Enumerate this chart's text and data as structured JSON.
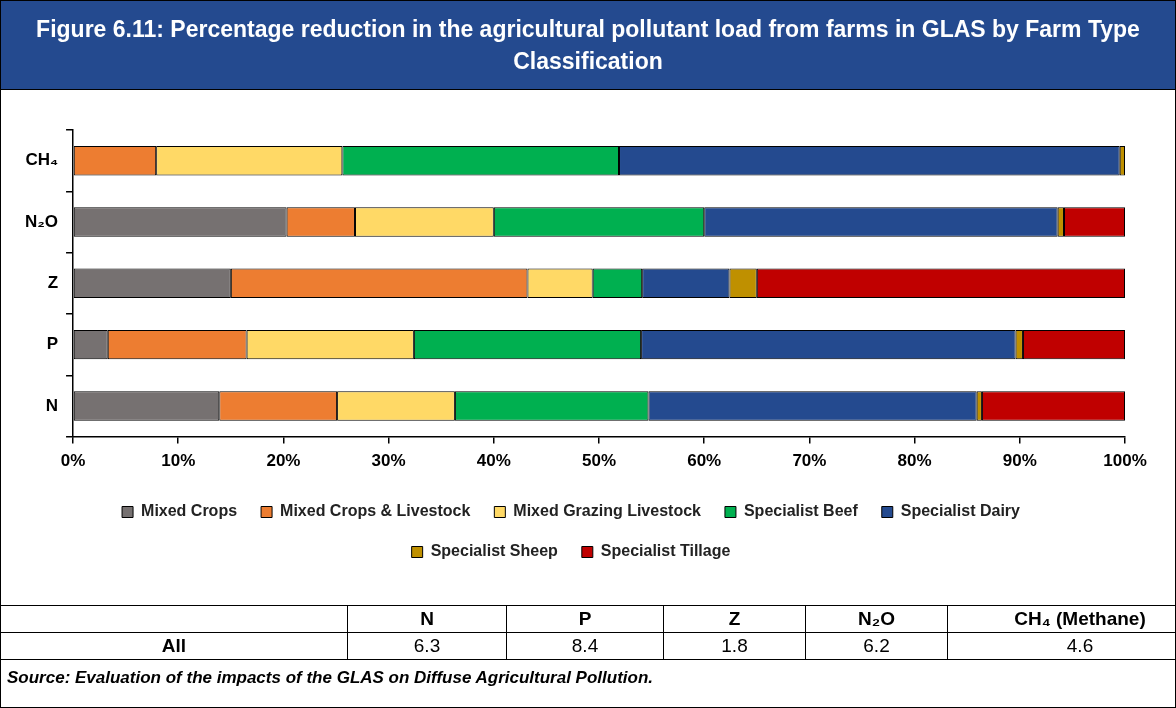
{
  "chart_data": [
    {
      "type": "bar",
      "orientation": "horizontal",
      "stacked": true,
      "title": "Figure 6.11: Percentage reduction in the agricultural pollutant load from farms in GLAS by Farm Type Classification",
      "categories": [
        "CH₄",
        "N₂O",
        "Z",
        "P",
        "N"
      ],
      "series": [
        {
          "name": "Mixed Crops",
          "color": "#767171",
          "values": [
            null,
            20.3,
            15.0,
            3.3,
            13.9
          ]
        },
        {
          "name": "Mixed Crops & Livestock",
          "color": "#ed7d31",
          "values": [
            7.9,
            6.5,
            28.2,
            13.2,
            11.2
          ]
        },
        {
          "name": "Mixed Grazing Livestock",
          "color": "#ffd966",
          "values": [
            17.7,
            13.2,
            6.2,
            15.9,
            11.2
          ]
        },
        {
          "name": "Specialist Beef",
          "color": "#00b050",
          "values": [
            26.3,
            20.0,
            4.7,
            21.6,
            18.4
          ]
        },
        {
          "name": "Specialist Dairy",
          "color": "#244a8f",
          "values": [
            47.6,
            33.6,
            8.3,
            35.6,
            31.2
          ]
        },
        {
          "name": "Specialist Sheep",
          "color": "#bf9000",
          "values": [
            0.5,
            0.6,
            2.6,
            0.7,
            0.5
          ]
        },
        {
          "name": "Specialist Tillage",
          "color": "#c00000",
          "values": [
            null,
            5.8,
            35.0,
            9.7,
            13.6
          ]
        }
      ],
      "xlim": [
        0,
        100
      ],
      "xticks": [
        {
          "value": 0,
          "label": "0%"
        },
        {
          "value": 10,
          "label": "10%"
        },
        {
          "value": 20,
          "label": "20%"
        },
        {
          "value": 30,
          "label": "30%"
        },
        {
          "value": 40,
          "label": "40%"
        },
        {
          "value": 50,
          "label": "50%"
        },
        {
          "value": 60,
          "label": "60%"
        },
        {
          "value": 70,
          "label": "70%"
        },
        {
          "value": 80,
          "label": "80%"
        },
        {
          "value": 90,
          "label": "90%"
        },
        {
          "value": 100,
          "label": "100%"
        }
      ],
      "grid": false,
      "legend": "bottom",
      "annotations": [
        "Source: Evaluation of the impacts of the GLAS on Diffuse Agricultural Pollution."
      ]
    },
    {
      "type": "other",
      "categories": [
        "N",
        "P",
        "Z",
        "N₂O",
        "CH₄ (Methane)"
      ],
      "ylabel": "All",
      "values": [
        6.3,
        8.4,
        1.8,
        6.2,
        4.6
      ],
      "data_labels": true
    }
  ]
}
